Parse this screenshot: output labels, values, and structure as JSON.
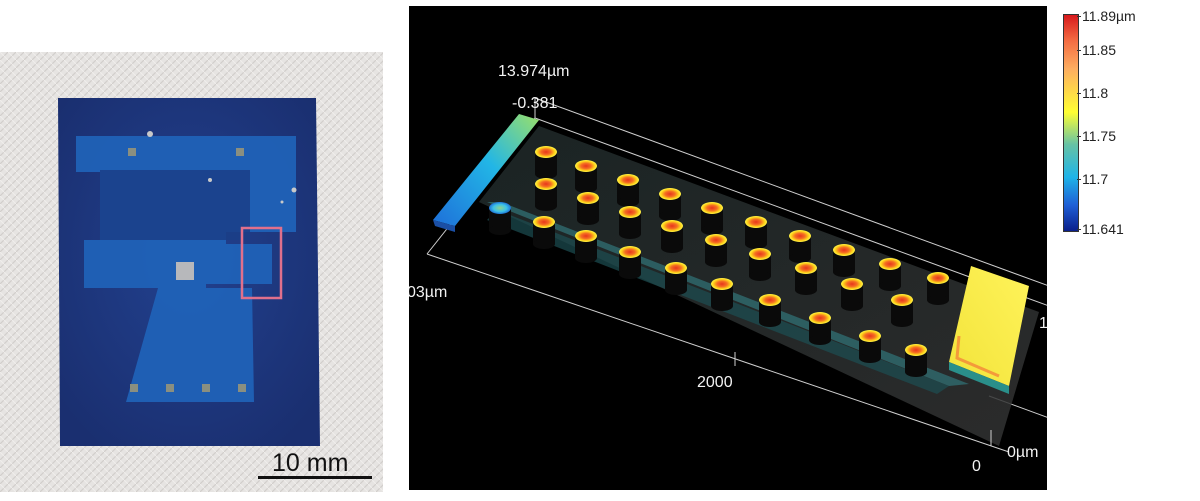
{
  "photo": {
    "scale_bar_label": "10 mm"
  },
  "profile": {
    "top_value": "13.974µm",
    "top_sub_value": "-0.381",
    "left_axis_label": "03µm",
    "x_axis_tick": "2000",
    "origin_tick": "0",
    "right_axis_label": "0µm",
    "edge_tick": "1"
  },
  "colorbar": {
    "ticks": [
      "11.89µm",
      "11.85",
      "11.8",
      "11.75",
      "11.7",
      "11.641"
    ],
    "colors": [
      "#d7191c",
      "#fdae61",
      "#ffff33",
      "#1fb4e8",
      "#0b1f8a"
    ]
  }
}
